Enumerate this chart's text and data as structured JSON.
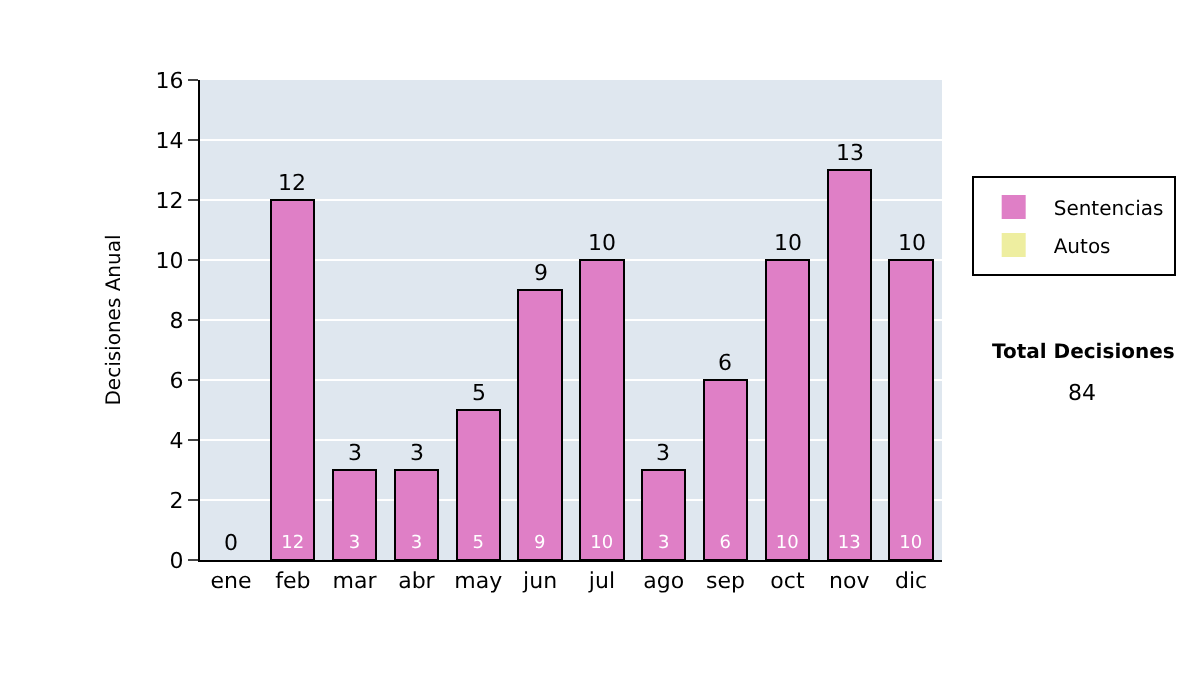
{
  "chart_data": {
    "type": "bar",
    "stacked": true,
    "ylabel": "Decisiones Anual",
    "categories": [
      "ene",
      "feb",
      "mar",
      "abr",
      "may",
      "jun",
      "jul",
      "ago",
      "sep",
      "oct",
      "nov",
      "dic"
    ],
    "series": [
      {
        "name": "Sentencias",
        "color": "#df7fc6",
        "values": [
          0,
          12,
          3,
          3,
          5,
          9,
          10,
          3,
          6,
          10,
          13,
          10
        ],
        "value_labels": [
          null,
          "12",
          "3",
          "3",
          "5",
          "9",
          "10",
          "3",
          "6",
          "10",
          "13",
          "10"
        ]
      },
      {
        "name": "Autos",
        "color": "#eeeea0",
        "values": [
          0,
          0,
          0,
          0,
          0,
          0,
          0,
          0,
          0,
          0,
          0,
          0
        ]
      }
    ],
    "totals": [
      "0",
      "12",
      "3",
      "3",
      "5",
      "9",
      "10",
      "3",
      "6",
      "10",
      "13",
      "10"
    ],
    "ylim": [
      0,
      16
    ],
    "yticks": [
      0,
      2,
      4,
      6,
      8,
      10,
      12,
      14,
      16
    ],
    "grid": "y",
    "legend": "right",
    "annotations": [
      "Total Decisiones",
      "84"
    ]
  }
}
